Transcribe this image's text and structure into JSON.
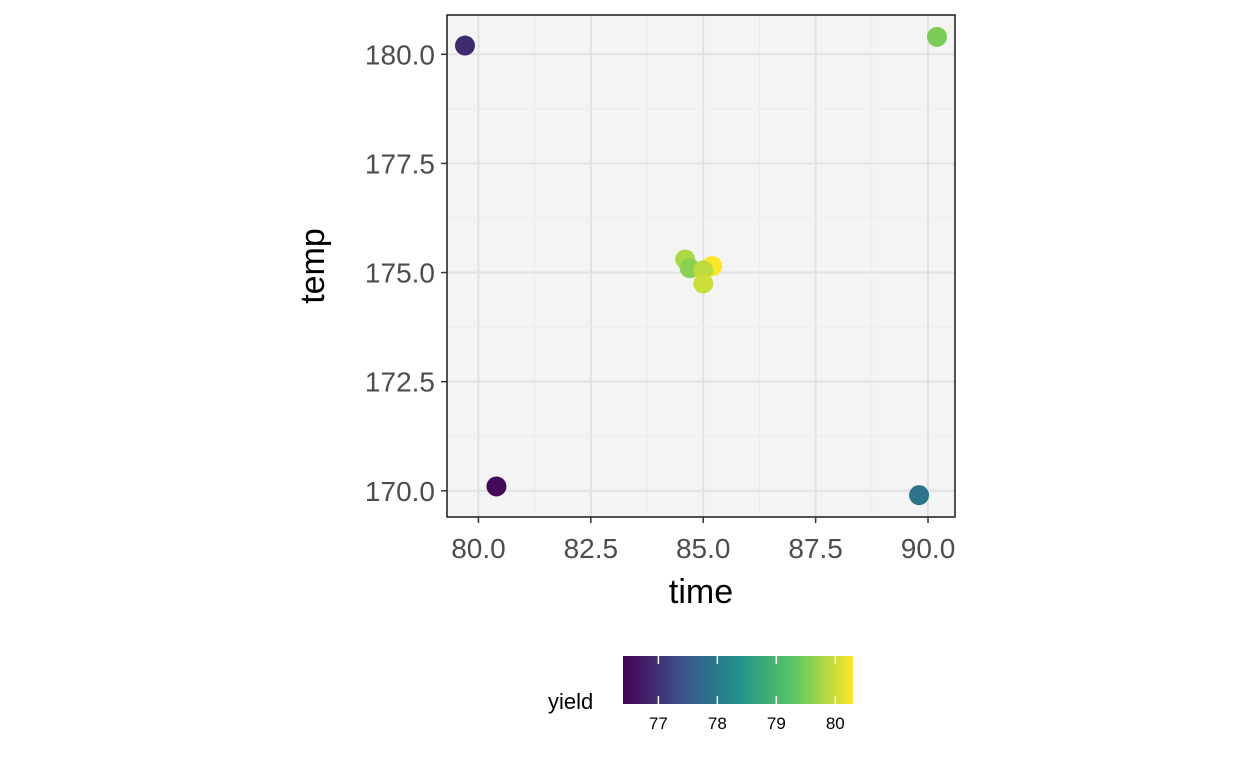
{
  "chart_data": {
    "type": "scatter",
    "xlabel": "time",
    "ylabel": "temp",
    "xlim": [
      79.3,
      90.6
    ],
    "ylim": [
      169.4,
      180.9
    ],
    "x_ticks": [
      "80.0",
      "82.5",
      "85.0",
      "87.5",
      "90.0"
    ],
    "x_tick_values": [
      80.0,
      82.5,
      85.0,
      87.5,
      90.0
    ],
    "y_ticks": [
      "170.0",
      "172.5",
      "175.0",
      "177.5",
      "180.0"
    ],
    "y_tick_values": [
      170.0,
      172.5,
      175.0,
      177.5,
      180.0
    ],
    "grid": true,
    "panel_background": "#f4f4f4",
    "points": [
      {
        "x": 79.7,
        "y": 180.2,
        "yield": 76.9
      },
      {
        "x": 80.4,
        "y": 170.1,
        "yield": 76.5
      },
      {
        "x": 90.2,
        "y": 180.4,
        "yield": 79.5
      },
      {
        "x": 89.8,
        "y": 169.9,
        "yield": 77.9
      },
      {
        "x": 84.6,
        "y": 175.3,
        "yield": 79.8
      },
      {
        "x": 84.7,
        "y": 175.1,
        "yield": 79.6
      },
      {
        "x": 85.2,
        "y": 175.15,
        "yield": 80.3
      },
      {
        "x": 85.0,
        "y": 175.05,
        "yield": 79.9
      },
      {
        "x": 85.0,
        "y": 174.75,
        "yield": 80.0
      }
    ],
    "legend": {
      "title": "yield",
      "position": "bottom",
      "range": [
        76.4,
        80.3
      ],
      "ticks": [
        77,
        78,
        79,
        80
      ],
      "tick_labels": [
        "77",
        "78",
        "79",
        "80"
      ]
    },
    "colormap": [
      "#440154",
      "#3b528b",
      "#21908c",
      "#5dc963",
      "#fde725"
    ]
  }
}
